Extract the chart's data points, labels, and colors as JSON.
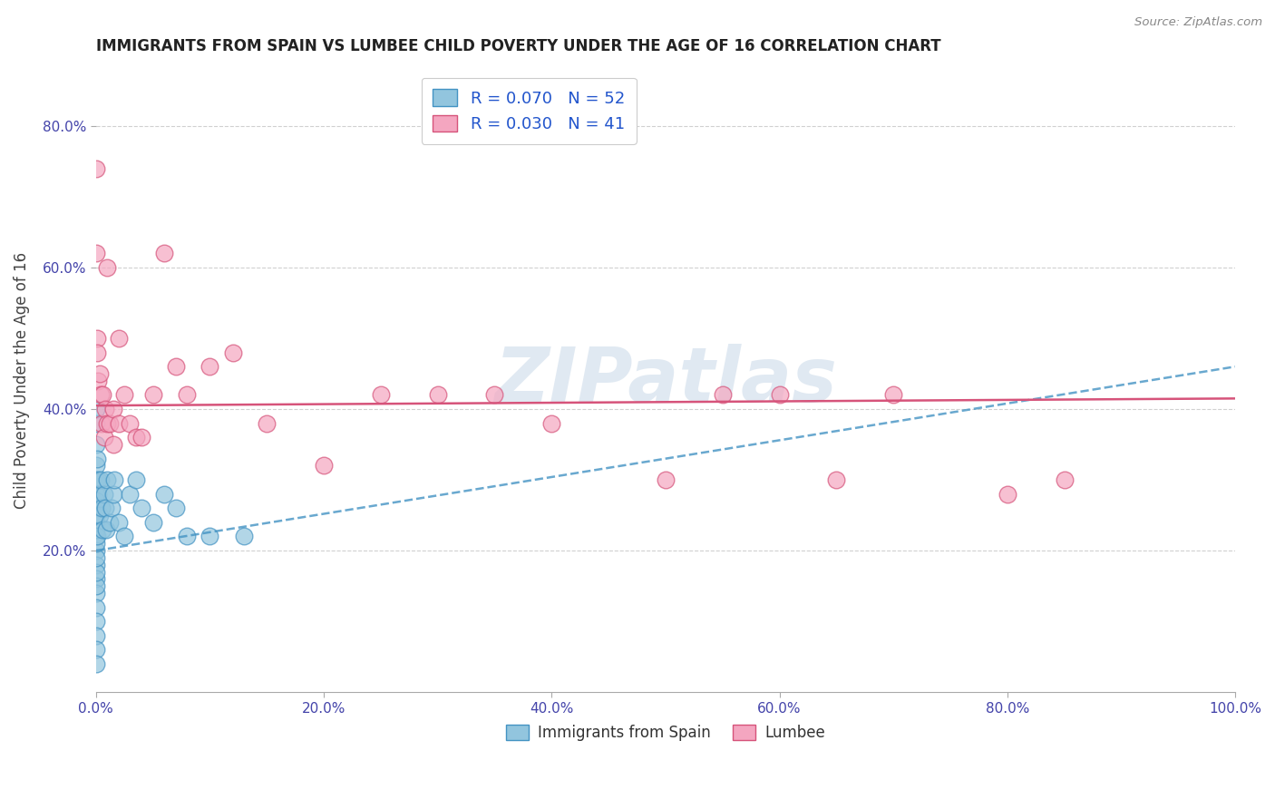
{
  "title": "IMMIGRANTS FROM SPAIN VS LUMBEE CHILD POVERTY UNDER THE AGE OF 16 CORRELATION CHART",
  "source_text": "Source: ZipAtlas.com",
  "ylabel": "Child Poverty Under the Age of 16",
  "xlim": [
    0.0,
    1.0
  ],
  "ylim": [
    0.0,
    0.88
  ],
  "xtick_labels": [
    "0.0%",
    "20.0%",
    "40.0%",
    "60.0%",
    "80.0%",
    "100.0%"
  ],
  "xtick_vals": [
    0.0,
    0.2,
    0.4,
    0.6,
    0.8,
    1.0
  ],
  "ytick_labels": [
    "20.0%",
    "40.0%",
    "60.0%",
    "80.0%"
  ],
  "ytick_vals": [
    0.2,
    0.4,
    0.6,
    0.8
  ],
  "legend_blue_label": "Immigrants from Spain",
  "legend_pink_label": "Lumbee",
  "legend_r_blue": "R = 0.070",
  "legend_n_blue": "N = 52",
  "legend_r_pink": "R = 0.030",
  "legend_n_pink": "N = 41",
  "blue_color": "#92c5de",
  "blue_edge_color": "#4393c3",
  "pink_color": "#f4a6c0",
  "pink_edge_color": "#d6537a",
  "trendline_blue_color": "#4393c3",
  "trendline_pink_color": "#d6537a",
  "watermark": "ZIPatlas",
  "blue_scatter_x": [
    0.0,
    0.0,
    0.0,
    0.0,
    0.0,
    0.0,
    0.0,
    0.0,
    0.0,
    0.0,
    0.0,
    0.0,
    0.0,
    0.0,
    0.0,
    0.0,
    0.0,
    0.0,
    0.0,
    0.0,
    0.0,
    0.0,
    0.0,
    0.0,
    0.0,
    0.001,
    0.001,
    0.002,
    0.002,
    0.003,
    0.004,
    0.005,
    0.006,
    0.007,
    0.008,
    0.009,
    0.01,
    0.012,
    0.014,
    0.015,
    0.016,
    0.02,
    0.025,
    0.03,
    0.035,
    0.04,
    0.05,
    0.06,
    0.07,
    0.08,
    0.1,
    0.13
  ],
  "blue_scatter_y": [
    0.3,
    0.28,
    0.26,
    0.24,
    0.22,
    0.2,
    0.18,
    0.16,
    0.14,
    0.12,
    0.1,
    0.08,
    0.06,
    0.04,
    0.35,
    0.32,
    0.38,
    0.4,
    0.15,
    0.17,
    0.19,
    0.21,
    0.23,
    0.25,
    0.27,
    0.22,
    0.33,
    0.3,
    0.28,
    0.25,
    0.3,
    0.26,
    0.23,
    0.28,
    0.26,
    0.23,
    0.3,
    0.24,
    0.26,
    0.28,
    0.3,
    0.24,
    0.22,
    0.28,
    0.3,
    0.26,
    0.24,
    0.28,
    0.26,
    0.22,
    0.22,
    0.22
  ],
  "pink_scatter_x": [
    0.0,
    0.0,
    0.001,
    0.001,
    0.002,
    0.003,
    0.004,
    0.005,
    0.006,
    0.007,
    0.008,
    0.01,
    0.01,
    0.012,
    0.015,
    0.015,
    0.02,
    0.02,
    0.025,
    0.03,
    0.035,
    0.04,
    0.05,
    0.06,
    0.07,
    0.08,
    0.1,
    0.12,
    0.15,
    0.2,
    0.25,
    0.3,
    0.35,
    0.4,
    0.5,
    0.55,
    0.6,
    0.65,
    0.7,
    0.8,
    0.85
  ],
  "pink_scatter_y": [
    0.74,
    0.62,
    0.5,
    0.48,
    0.44,
    0.45,
    0.42,
    0.38,
    0.42,
    0.36,
    0.4,
    0.6,
    0.38,
    0.38,
    0.35,
    0.4,
    0.5,
    0.38,
    0.42,
    0.38,
    0.36,
    0.36,
    0.42,
    0.62,
    0.46,
    0.42,
    0.46,
    0.48,
    0.38,
    0.32,
    0.42,
    0.42,
    0.42,
    0.38,
    0.3,
    0.42,
    0.42,
    0.3,
    0.42,
    0.28,
    0.3
  ],
  "blue_trendline_x0": 0.0,
  "blue_trendline_x1": 1.0,
  "blue_trendline_y0": 0.2,
  "blue_trendline_y1": 0.46,
  "pink_trendline_x0": 0.0,
  "pink_trendline_x1": 1.0,
  "pink_trendline_y0": 0.405,
  "pink_trendline_y1": 0.415
}
